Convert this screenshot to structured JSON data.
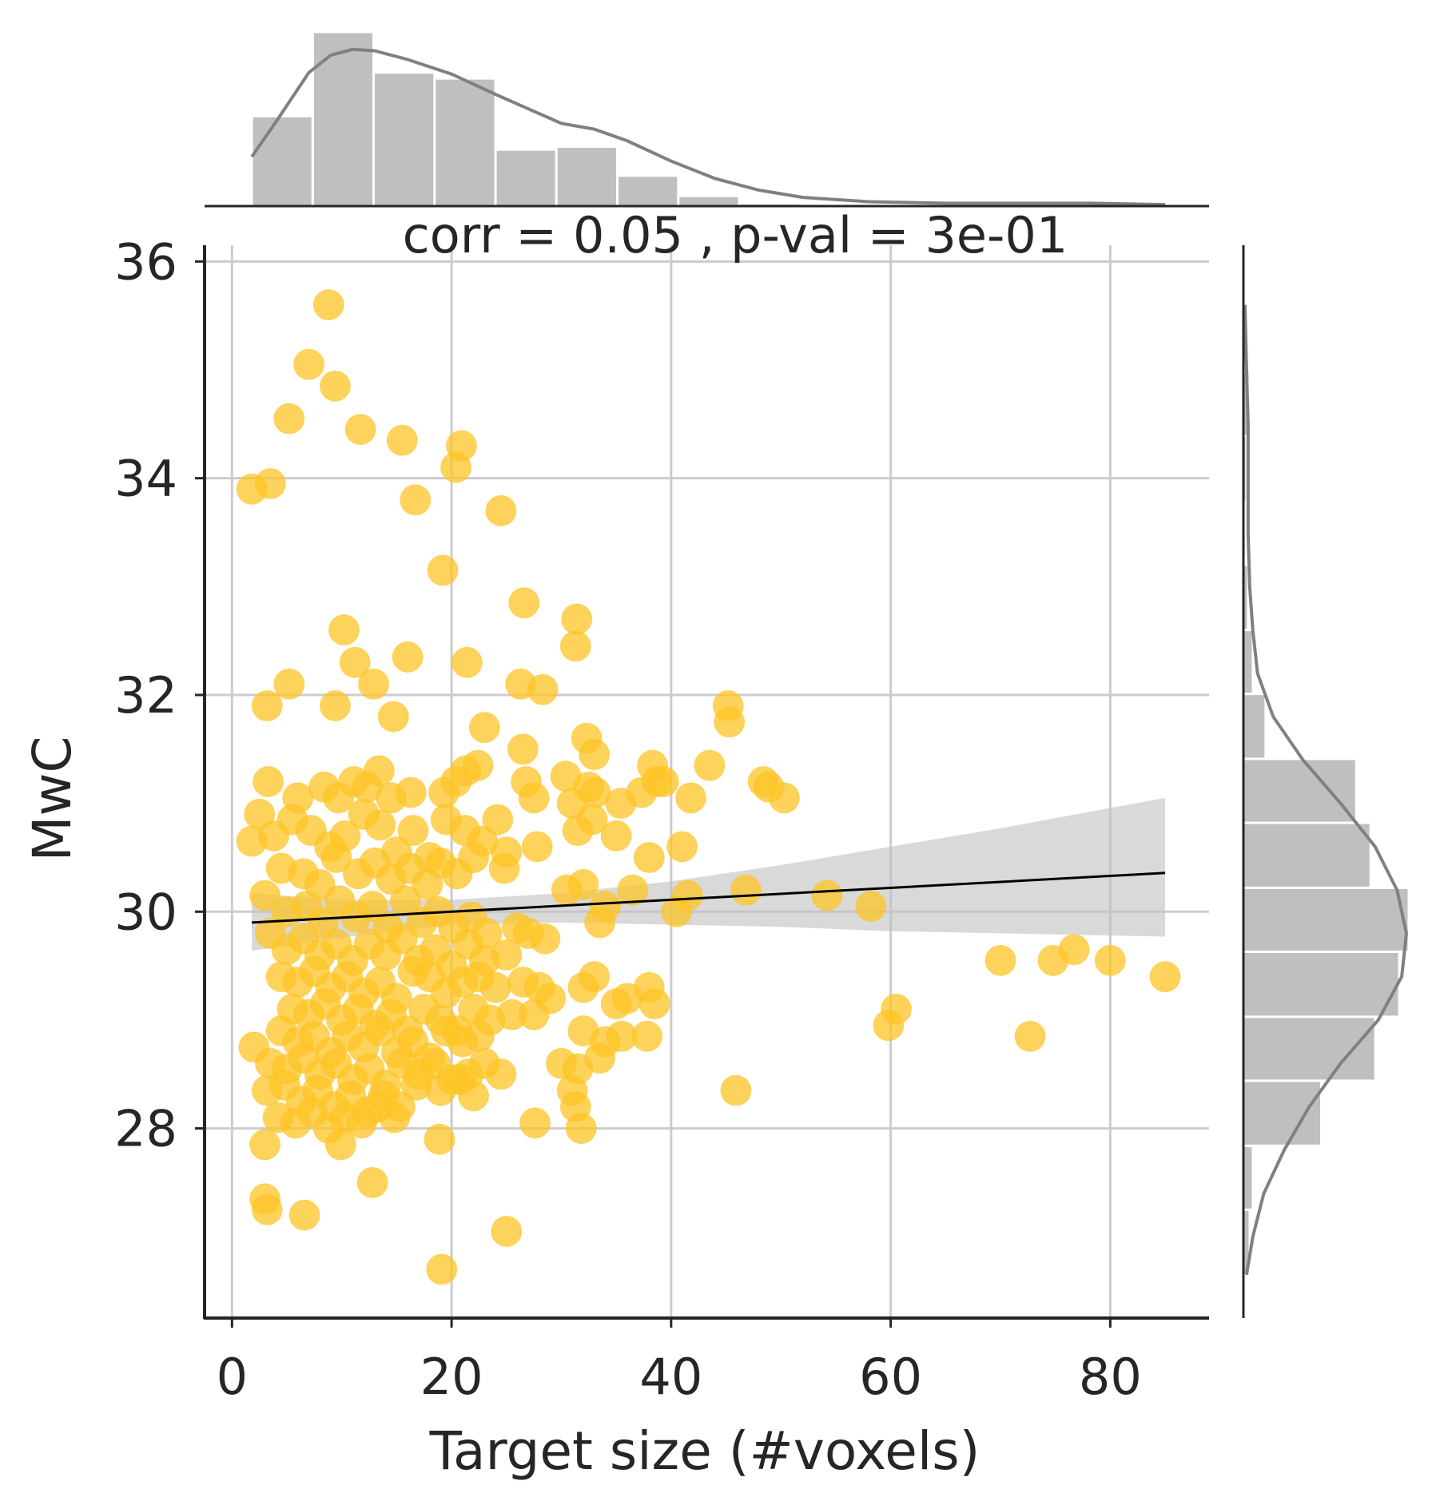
{
  "chart_data": {
    "type": "scatter",
    "annotation": "corr = 0.05 , p-val = 3e-01",
    "xlabel": "Target size (#voxels)",
    "ylabel": "MwC",
    "xlim": [
      -2.5,
      89
    ],
    "ylim": [
      26.25,
      36.15
    ],
    "xticks": [
      0,
      20,
      40,
      60,
      80
    ],
    "yticks": [
      28,
      30,
      32,
      34,
      36
    ],
    "grid": true,
    "point_color": "#fec425",
    "point_alpha": 0.75,
    "regression": {
      "slope": 0.0055,
      "intercept": 29.89,
      "x_range": [
        1.8,
        85
      ],
      "ci_lower": [
        [
          1.8,
          29.64
        ],
        [
          10,
          29.76
        ],
        [
          20,
          29.88
        ],
        [
          30,
          29.9
        ],
        [
          40,
          29.88
        ],
        [
          50,
          29.86
        ],
        [
          60,
          29.82
        ],
        [
          70,
          29.8
        ],
        [
          85,
          29.77
        ]
      ],
      "ci_upper": [
        [
          1.8,
          30.17
        ],
        [
          10,
          30.11
        ],
        [
          20,
          30.11
        ],
        [
          30,
          30.17
        ],
        [
          40,
          30.28
        ],
        [
          50,
          30.43
        ],
        [
          60,
          30.6
        ],
        [
          70,
          30.77
        ],
        [
          85,
          31.05
        ]
      ],
      "line_color": "#000000",
      "band_color": "#bfbfbf"
    },
    "marginal_x": {
      "bin_edges": [
        1.8,
        7.35,
        12.9,
        18.45,
        24.0,
        29.55,
        35.1,
        40.65,
        46.2,
        51.75,
        57.3,
        62.85,
        68.4,
        73.95,
        79.5,
        85.0
      ],
      "counts": [
        62,
        120,
        92,
        88,
        39,
        41,
        21,
        7,
        2,
        1,
        1,
        0,
        0,
        1,
        1
      ],
      "kde": [
        [
          1.8,
          34
        ],
        [
          4,
          58
        ],
        [
          7,
          92
        ],
        [
          9,
          104
        ],
        [
          11,
          108
        ],
        [
          13,
          107
        ],
        [
          16,
          101
        ],
        [
          20,
          91
        ],
        [
          24,
          77
        ],
        [
          27,
          67
        ],
        [
          30,
          57
        ],
        [
          33,
          53
        ],
        [
          36,
          45
        ],
        [
          40,
          31
        ],
        [
          44,
          19
        ],
        [
          48,
          11
        ],
        [
          52,
          6
        ],
        [
          58,
          3
        ],
        [
          65,
          2
        ],
        [
          72,
          2
        ],
        [
          78,
          2
        ],
        [
          85,
          1
        ]
      ],
      "color": "#bfbfbf",
      "kde_color": "#808080"
    },
    "marginal_y": {
      "bin_edges": [
        26.65,
        27.25,
        27.84,
        28.44,
        29.03,
        29.63,
        30.22,
        30.82,
        31.41,
        32.01,
        32.6,
        33.2,
        33.79,
        34.39,
        34.98,
        35.58
      ],
      "counts": [
        4,
        6,
        49,
        83,
        98,
        104,
        80,
        71,
        14,
        6,
        3,
        1,
        2,
        4,
        1
      ],
      "kde": [
        [
          26.65,
          2
        ],
        [
          27.0,
          6
        ],
        [
          27.4,
          13
        ],
        [
          27.8,
          26
        ],
        [
          28.2,
          42
        ],
        [
          28.6,
          62
        ],
        [
          29.0,
          86
        ],
        [
          29.4,
          101
        ],
        [
          29.8,
          104
        ],
        [
          30.2,
          98
        ],
        [
          30.6,
          84
        ],
        [
          31.0,
          62
        ],
        [
          31.4,
          38
        ],
        [
          31.8,
          19
        ],
        [
          32.2,
          9
        ],
        [
          32.6,
          6
        ],
        [
          33.0,
          4
        ],
        [
          33.5,
          3
        ],
        [
          34.0,
          3
        ],
        [
          34.5,
          3
        ],
        [
          35.0,
          2
        ],
        [
          35.6,
          1
        ]
      ],
      "color": "#bfbfbf",
      "kde_color": "#808080"
    },
    "points": [
      [
        1.8,
        33.9
      ],
      [
        3.5,
        33.95
      ],
      [
        5.2,
        34.55
      ],
      [
        7.0,
        35.05
      ],
      [
        8.8,
        35.6
      ],
      [
        9.4,
        34.85
      ],
      [
        11.7,
        34.45
      ],
      [
        15.5,
        34.35
      ],
      [
        16.7,
        33.8
      ],
      [
        20.4,
        34.1
      ],
      [
        20.9,
        34.3
      ],
      [
        24.5,
        33.7
      ],
      [
        19.2,
        33.15
      ],
      [
        26.6,
        32.85
      ],
      [
        31.4,
        32.7
      ],
      [
        31.3,
        32.45
      ],
      [
        10.2,
        32.6
      ],
      [
        11.2,
        32.3
      ],
      [
        12.9,
        32.1
      ],
      [
        16.0,
        32.35
      ],
      [
        21.4,
        32.3
      ],
      [
        26.3,
        32.1
      ],
      [
        28.3,
        32.05
      ],
      [
        5.2,
        32.1
      ],
      [
        3.2,
        31.9
      ],
      [
        9.4,
        31.9
      ],
      [
        14.7,
        31.8
      ],
      [
        23.0,
        31.7
      ],
      [
        26.5,
        31.5
      ],
      [
        32.3,
        31.6
      ],
      [
        33.0,
        31.45
      ],
      [
        45.2,
        31.9
      ],
      [
        45.3,
        31.75
      ],
      [
        43.5,
        31.35
      ],
      [
        38.3,
        31.35
      ],
      [
        3.3,
        31.2
      ],
      [
        6.0,
        31.05
      ],
      [
        8.4,
        31.15
      ],
      [
        9.7,
        31.05
      ],
      [
        11.1,
        31.2
      ],
      [
        12.3,
        31.15
      ],
      [
        13.4,
        31.3
      ],
      [
        14.5,
        31.05
      ],
      [
        16.3,
        31.1
      ],
      [
        19.3,
        31.1
      ],
      [
        20.4,
        31.2
      ],
      [
        21.3,
        31.3
      ],
      [
        22.4,
        31.35
      ],
      [
        26.8,
        31.2
      ],
      [
        27.5,
        31.05
      ],
      [
        30.4,
        31.25
      ],
      [
        31.0,
        31.0
      ],
      [
        32.5,
        31.15
      ],
      [
        33.1,
        31.1
      ],
      [
        35.4,
        31.0
      ],
      [
        37.3,
        31.1
      ],
      [
        38.7,
        31.2
      ],
      [
        39.3,
        31.2
      ],
      [
        41.8,
        31.05
      ],
      [
        48.4,
        31.2
      ],
      [
        48.9,
        31.15
      ],
      [
        50.3,
        31.05
      ],
      [
        2.5,
        30.9
      ],
      [
        3.8,
        30.7
      ],
      [
        5.5,
        30.85
      ],
      [
        7.2,
        30.75
      ],
      [
        8.9,
        30.6
      ],
      [
        10.3,
        30.7
      ],
      [
        12.0,
        30.9
      ],
      [
        13.5,
        30.8
      ],
      [
        15.0,
        30.55
      ],
      [
        16.5,
        30.75
      ],
      [
        18.0,
        30.5
      ],
      [
        19.5,
        30.85
      ],
      [
        21.2,
        30.75
      ],
      [
        22.8,
        30.65
      ],
      [
        24.2,
        30.85
      ],
      [
        25.0,
        30.55
      ],
      [
        27.8,
        30.6
      ],
      [
        31.5,
        30.75
      ],
      [
        32.8,
        30.85
      ],
      [
        35.0,
        30.7
      ],
      [
        38.0,
        30.5
      ],
      [
        41.0,
        30.6
      ],
      [
        1.8,
        30.65
      ],
      [
        4.5,
        30.4
      ],
      [
        6.5,
        30.35
      ],
      [
        8.0,
        30.25
      ],
      [
        9.5,
        30.5
      ],
      [
        11.5,
        30.35
      ],
      [
        13.0,
        30.45
      ],
      [
        14.5,
        30.3
      ],
      [
        16.2,
        30.4
      ],
      [
        17.8,
        30.25
      ],
      [
        19.0,
        30.45
      ],
      [
        20.5,
        30.35
      ],
      [
        22.0,
        30.5
      ],
      [
        24.8,
        30.4
      ],
      [
        30.5,
        30.2
      ],
      [
        32.0,
        30.25
      ],
      [
        34.0,
        30.05
      ],
      [
        36.5,
        30.2
      ],
      [
        40.5,
        30.0
      ],
      [
        41.5,
        30.15
      ],
      [
        46.8,
        30.2
      ],
      [
        54.2,
        30.15
      ],
      [
        58.2,
        30.05
      ],
      [
        3.0,
        30.15
      ],
      [
        5.0,
        30.0
      ],
      [
        6.8,
        30.05
      ],
      [
        8.3,
        29.9
      ],
      [
        9.8,
        30.1
      ],
      [
        11.3,
        29.95
      ],
      [
        12.8,
        30.05
      ],
      [
        14.2,
        29.85
      ],
      [
        15.8,
        30.1
      ],
      [
        17.3,
        29.9
      ],
      [
        18.8,
        30.0
      ],
      [
        20.2,
        29.85
      ],
      [
        21.8,
        29.95
      ],
      [
        23.2,
        29.8
      ],
      [
        26.0,
        29.85
      ],
      [
        28.5,
        29.75
      ],
      [
        33.5,
        29.9
      ],
      [
        3.5,
        29.8
      ],
      [
        5.0,
        29.65
      ],
      [
        6.5,
        29.75
      ],
      [
        8.0,
        29.6
      ],
      [
        9.5,
        29.7
      ],
      [
        11.0,
        29.55
      ],
      [
        12.5,
        29.7
      ],
      [
        14.0,
        29.6
      ],
      [
        15.5,
        29.75
      ],
      [
        17.0,
        29.55
      ],
      [
        18.5,
        29.65
      ],
      [
        20.0,
        29.5
      ],
      [
        21.5,
        29.7
      ],
      [
        23.0,
        29.55
      ],
      [
        25.0,
        29.6
      ],
      [
        27.0,
        29.8
      ],
      [
        4.5,
        29.4
      ],
      [
        6.0,
        29.35
      ],
      [
        7.5,
        29.45
      ],
      [
        9.0,
        29.3
      ],
      [
        10.5,
        29.4
      ],
      [
        12.0,
        29.25
      ],
      [
        13.5,
        29.35
      ],
      [
        15.0,
        29.2
      ],
      [
        16.5,
        29.45
      ],
      [
        18.0,
        29.4
      ],
      [
        19.5,
        29.25
      ],
      [
        21.0,
        29.35
      ],
      [
        22.5,
        29.4
      ],
      [
        24.0,
        29.3
      ],
      [
        26.5,
        29.35
      ],
      [
        28.0,
        29.3
      ],
      [
        32.0,
        29.3
      ],
      [
        33.0,
        29.4
      ],
      [
        36.0,
        29.2
      ],
      [
        38.0,
        29.3
      ],
      [
        70.0,
        29.55
      ],
      [
        74.8,
        29.55
      ],
      [
        76.7,
        29.65
      ],
      [
        80.0,
        29.55
      ],
      [
        85.0,
        29.4
      ],
      [
        5.5,
        29.1
      ],
      [
        7.0,
        29.05
      ],
      [
        8.5,
        29.15
      ],
      [
        10.0,
        29.0
      ],
      [
        11.5,
        29.1
      ],
      [
        13.0,
        28.95
      ],
      [
        14.5,
        29.05
      ],
      [
        16.0,
        28.9
      ],
      [
        17.5,
        29.1
      ],
      [
        19.0,
        29.0
      ],
      [
        20.5,
        28.9
      ],
      [
        22.0,
        29.1
      ],
      [
        23.5,
        29.0
      ],
      [
        25.5,
        29.05
      ],
      [
        27.5,
        29.05
      ],
      [
        29.0,
        29.2
      ],
      [
        35.0,
        29.15
      ],
      [
        38.5,
        29.15
      ],
      [
        60.5,
        29.1
      ],
      [
        59.8,
        28.95
      ],
      [
        72.7,
        28.85
      ],
      [
        4.5,
        28.9
      ],
      [
        6.0,
        28.8
      ],
      [
        7.5,
        28.85
      ],
      [
        9.0,
        28.7
      ],
      [
        10.5,
        28.85
      ],
      [
        12.0,
        28.75
      ],
      [
        13.5,
        28.9
      ],
      [
        15.0,
        28.7
      ],
      [
        16.5,
        28.8
      ],
      [
        18.0,
        28.65
      ],
      [
        19.5,
        28.9
      ],
      [
        21.0,
        28.8
      ],
      [
        22.5,
        28.85
      ],
      [
        32.0,
        28.9
      ],
      [
        34.0,
        28.8
      ],
      [
        35.5,
        28.85
      ],
      [
        37.8,
        28.85
      ],
      [
        2.0,
        28.75
      ],
      [
        3.5,
        28.6
      ],
      [
        5.0,
        28.55
      ],
      [
        6.5,
        28.65
      ],
      [
        8.0,
        28.5
      ],
      [
        9.5,
        28.6
      ],
      [
        11.0,
        28.45
      ],
      [
        12.5,
        28.55
      ],
      [
        14.0,
        28.4
      ],
      [
        15.5,
        28.6
      ],
      [
        17.0,
        28.5
      ],
      [
        18.5,
        28.6
      ],
      [
        20.0,
        28.45
      ],
      [
        21.5,
        28.5
      ],
      [
        23.0,
        28.6
      ],
      [
        24.5,
        28.5
      ],
      [
        30.0,
        28.6
      ],
      [
        31.5,
        28.55
      ],
      [
        33.5,
        28.65
      ],
      [
        3.2,
        28.35
      ],
      [
        4.8,
        28.4
      ],
      [
        6.3,
        28.25
      ],
      [
        7.8,
        28.35
      ],
      [
        9.3,
        28.2
      ],
      [
        10.8,
        28.3
      ],
      [
        12.3,
        28.15
      ],
      [
        13.8,
        28.3
      ],
      [
        15.3,
        28.2
      ],
      [
        16.8,
        28.4
      ],
      [
        19.0,
        28.35
      ],
      [
        20.8,
        28.45
      ],
      [
        22.0,
        28.3
      ],
      [
        31.0,
        28.35
      ],
      [
        45.9,
        28.35
      ],
      [
        4.2,
        28.1
      ],
      [
        5.8,
        28.05
      ],
      [
        7.3,
        28.15
      ],
      [
        8.8,
        28.0
      ],
      [
        10.3,
        28.1
      ],
      [
        11.8,
        28.05
      ],
      [
        13.3,
        28.2
      ],
      [
        14.8,
        28.1
      ],
      [
        31.3,
        28.2
      ],
      [
        27.6,
        28.05
      ],
      [
        31.8,
        28.0
      ],
      [
        3.0,
        27.85
      ],
      [
        9.9,
        27.85
      ],
      [
        18.9,
        27.9
      ],
      [
        12.8,
        27.5
      ],
      [
        3.0,
        27.35
      ],
      [
        3.2,
        27.25
      ],
      [
        6.6,
        27.2
      ],
      [
        25.0,
        27.05
      ],
      [
        19.1,
        26.7
      ]
    ]
  }
}
